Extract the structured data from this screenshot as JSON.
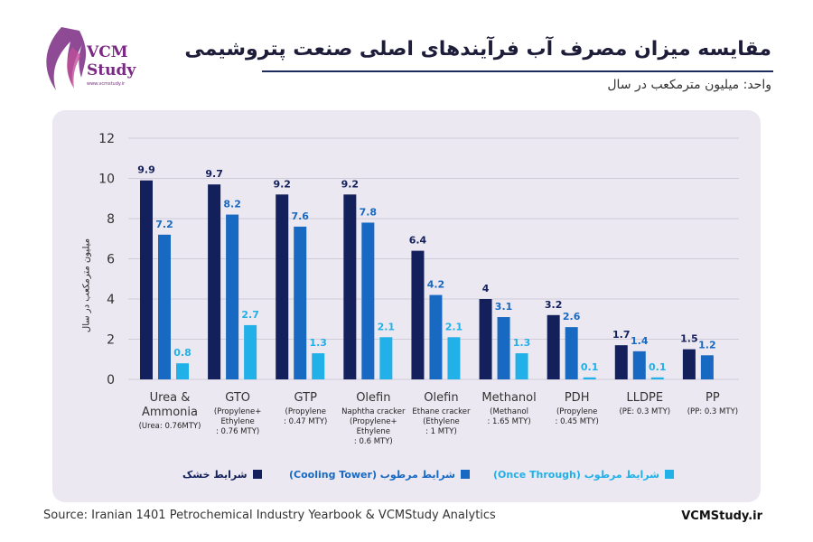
{
  "brand": {
    "name_line1": "VCM",
    "name_line2": "Study",
    "site_small": "www.vcmstudy.ir"
  },
  "title": "مقایسه میزان مصرف آب فرآیندهای اصلی صنعت پتروشیمی",
  "unit_label": "واحد: میلیون مترمکعب در سال",
  "source": "Source:  Iranian 1401 Petrochemical  Industry Yearbook  & VCMStudy  Analytics",
  "site": "VCMStudy.ir",
  "chart_data": {
    "type": "bar",
    "ylabel": "میلیون مترمکعب در سال",
    "ylim": [
      0,
      12
    ],
    "yticks": [
      "0",
      "2",
      "4",
      "6",
      "8",
      "10",
      "12"
    ],
    "grid": true,
    "legend_position": "bottom",
    "categories": [
      {
        "name": "Urea &\nAmmonia",
        "detail": "(Urea: 0.76MTY)"
      },
      {
        "name": "GTO",
        "detail": "(Propylene+\nEthylene\n: 0.76 MTY)"
      },
      {
        "name": "GTP",
        "detail": "(Propylene\n: 0.47 MTY)"
      },
      {
        "name": "Olefin",
        "detail": "Naphtha cracker\n(Propylene+\nEthylene\n: 0.6 MTY)"
      },
      {
        "name": "Olefin",
        "detail": "Ethane cracker\n(Ethylene\n: 1 MTY)"
      },
      {
        "name": "Methanol",
        "detail": "(Methanol\n: 1.65 MTY)"
      },
      {
        "name": "PDH",
        "detail": "(Propylene\n: 0.45 MTY)"
      },
      {
        "name": "LLDPE",
        "detail": "(PE: 0.3 MTY)"
      },
      {
        "name": "PP",
        "detail": "(PP: 0.3 MTY)"
      }
    ],
    "series": [
      {
        "name": "شرایط خشک",
        "color": "#13205c",
        "values": [
          9.9,
          9.7,
          9.2,
          9.2,
          6.4,
          4,
          3.2,
          1.7,
          1.5
        ],
        "labels": [
          "9.9",
          "9.7",
          "9.2",
          "9.2",
          "6.4",
          "4",
          "3.2",
          "1.7",
          "1.5"
        ]
      },
      {
        "name": "شرایط مرطوب (Cooling Tower)",
        "color": "#1769c2",
        "values": [
          7.2,
          8.2,
          7.6,
          7.8,
          4.2,
          3.1,
          2.6,
          1.4,
          1.2
        ],
        "labels": [
          "7.2",
          "8.2",
          "7.6",
          "7.8",
          "4.2",
          "3.1",
          "2.6",
          "1.4",
          "1.2"
        ]
      },
      {
        "name": "شرایط مرطوب (Once Through)",
        "color": "#21b1e8",
        "values": [
          0.8,
          2.7,
          1.3,
          2.1,
          2.1,
          1.3,
          0.1,
          0.1,
          null
        ],
        "labels": [
          "0.8",
          "2.7",
          "1.3",
          "2.1",
          "2.1",
          "1.3",
          "0.1",
          "0.1",
          ""
        ]
      }
    ]
  }
}
